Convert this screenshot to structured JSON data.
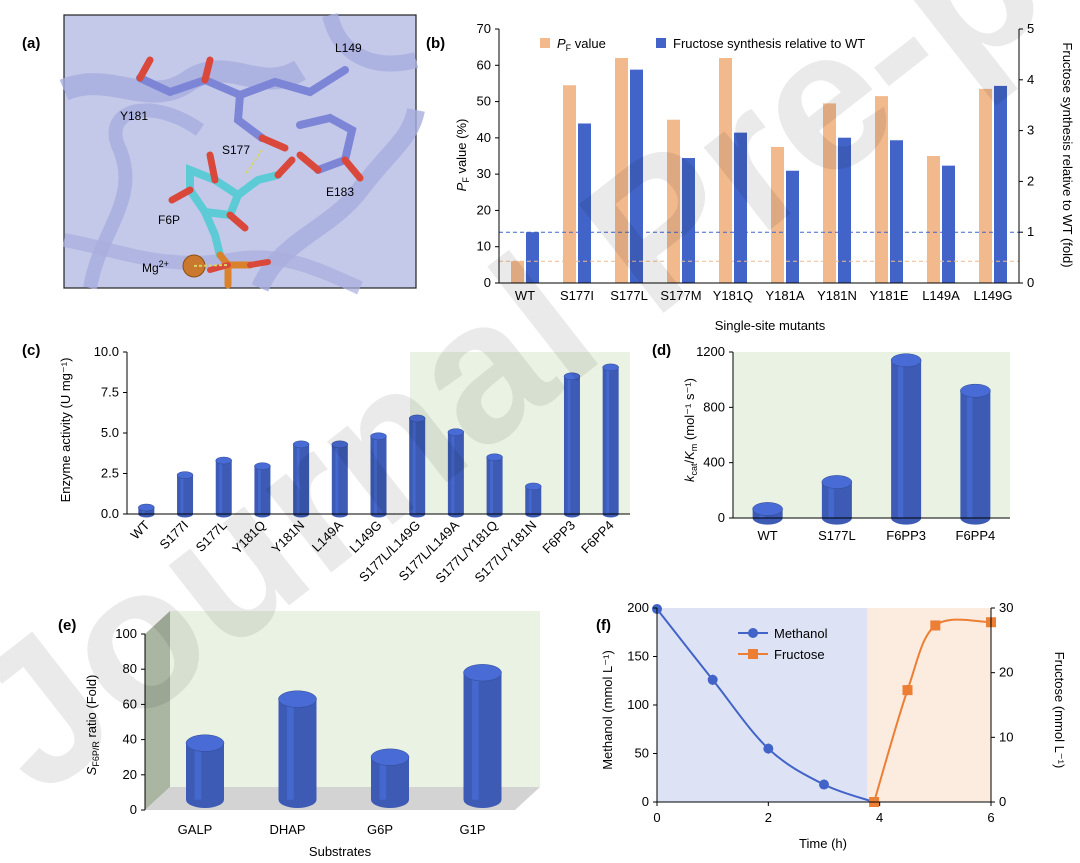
{
  "watermark": "Journal Pre-proof",
  "panels": {
    "a": {
      "label": "(a)",
      "residues": [
        "L149",
        "Y181",
        "S177",
        "E183",
        "F6P",
        "Mg2+"
      ],
      "colors": {
        "background": "#c4c9ea",
        "ribbon": "#9da4d9",
        "carbon_residue": "#7d86d6",
        "carbon_ligand": "#5ccbd6",
        "oxygen": "#d9483b",
        "phosphorus": "#d9822b",
        "magnesium": "#c9782d"
      }
    },
    "b": {
      "label": "(b)"
    },
    "c": {
      "label": "(c)"
    },
    "d": {
      "label": "(d)"
    },
    "e": {
      "label": "(e)"
    },
    "f": {
      "label": "(f)"
    }
  },
  "chart_data": [
    {
      "id": "b",
      "type": "bar",
      "xlabel": "Single-site mutants",
      "ylabel": "P_F value (%)",
      "ylabel_parts": {
        "main": "P",
        "sub": "F",
        "rest": " value (%)"
      },
      "y2label": "Fructose synthesis relative to WT (fold)",
      "ylim": [
        0,
        70
      ],
      "y2lim": [
        0,
        5
      ],
      "yticks": [
        0,
        10,
        20,
        30,
        40,
        50,
        60,
        70
      ],
      "y2ticks": [
        0,
        1,
        2,
        3,
        4,
        5
      ],
      "categories": [
        "WT",
        "S177I",
        "S177L",
        "S177M",
        "Y181Q",
        "Y181A",
        "Y181N",
        "Y181E",
        "L149A",
        "L149G"
      ],
      "series": [
        {
          "name": "P_F value",
          "name_parts": {
            "main": "P",
            "sub": "F",
            "rest": " value"
          },
          "axis": "left",
          "color": "#f2b98c",
          "values": [
            6,
            54.5,
            62,
            45,
            62,
            37.5,
            49.5,
            51.5,
            35,
            53.5
          ]
        },
        {
          "name": "Fructose synthesis relative to WT",
          "axis": "right",
          "color": "#4264c8",
          "values": [
            1.0,
            3.14,
            4.2,
            2.46,
            2.96,
            2.21,
            2.86,
            2.81,
            2.31,
            3.88
          ]
        }
      ],
      "reference_lines": [
        {
          "axis": "right",
          "value": 1.0,
          "color": "#4264c8",
          "style": "dashed"
        },
        {
          "axis": "left",
          "value": 6,
          "color": "#f2b98c",
          "style": "dashed"
        }
      ],
      "grid": false,
      "legend_position": "top-left"
    },
    {
      "id": "c",
      "type": "bar",
      "style": "3d-cylinder",
      "ylabel": "Enzyme activity (U mg⁻¹)",
      "ylim": [
        0,
        10
      ],
      "yticks": [
        "0.0",
        "2.5",
        "5.0",
        "7.5",
        "10.0"
      ],
      "categories": [
        "WT",
        "S177I",
        "S177L",
        "Y181Q",
        "Y181N",
        "L149A",
        "L149G",
        "S177L/L149G",
        "S177L/L149A",
        "S177L/Y181Q",
        "S177L/Y181N",
        "F6PP3",
        "F6PP4"
      ],
      "values": [
        0.4,
        2.4,
        3.3,
        2.95,
        4.3,
        4.3,
        4.8,
        5.9,
        5.05,
        3.5,
        1.7,
        8.5,
        9.05
      ],
      "color": "#3d5bb5",
      "background_color": "#eaf3e3",
      "grid": false
    },
    {
      "id": "d",
      "type": "bar",
      "style": "3d-cylinder",
      "ylabel": "k_cat/K_m (mol⁻¹ s⁻¹)",
      "ylabel_parts": {
        "k": "k",
        "ksub": "cat",
        "slash": "/",
        "K": "K",
        "Ksub": "m",
        "rest": " (mol⁻¹ s⁻¹)"
      },
      "ylim": [
        0,
        1200
      ],
      "yticks": [
        0,
        400,
        800,
        1200
      ],
      "categories": [
        "WT",
        "S177L",
        "F6PP3",
        "F6PP4"
      ],
      "values": [
        65,
        260,
        1140,
        920
      ],
      "color": "#3d5bb5",
      "background_color": "#eaf3e3",
      "grid": false
    },
    {
      "id": "e",
      "type": "bar",
      "style": "3d-cylinder",
      "xlabel": "Substrates",
      "ylabel": "S_F6P/R ratio (Fold)",
      "ylabel_parts": {
        "main": "S",
        "sub": "F6P/R",
        "rest": " ratio (Fold)"
      },
      "ylim": [
        0,
        100
      ],
      "yticks": [
        0,
        20,
        40,
        60,
        80,
        100
      ],
      "categories": [
        "GALP",
        "DHAP",
        "G6P",
        "G1P"
      ],
      "values": [
        38,
        63,
        30,
        78
      ],
      "color": "#3d5bb5",
      "background_color": "#eaf3e3",
      "grid": false
    },
    {
      "id": "f",
      "type": "line",
      "xlabel": "Time (h)",
      "ylabel": "Methanol (mmol L⁻¹)",
      "y2label": "Fructose (mmol L⁻¹)",
      "xlim": [
        0,
        6
      ],
      "ylim": [
        0,
        200
      ],
      "y2lim": [
        0,
        30
      ],
      "xticks": [
        0,
        2,
        4,
        6
      ],
      "yticks": [
        0,
        50,
        100,
        150,
        200
      ],
      "y2ticks": [
        0,
        10,
        20,
        30
      ],
      "series": [
        {
          "name": "Methanol",
          "axis": "left",
          "color": "#4264c8",
          "marker": "circle",
          "x": [
            0,
            1,
            2,
            3,
            3.9
          ],
          "y": [
            199,
            126,
            55,
            18,
            0
          ]
        },
        {
          "name": "Fructose",
          "axis": "right",
          "color": "#ec7f34",
          "marker": "square",
          "x": [
            3.9,
            4.5,
            5,
            6
          ],
          "y": [
            0,
            17.3,
            27.3,
            27.8
          ]
        }
      ],
      "shaded_regions": [
        {
          "x": [
            0,
            3.78
          ],
          "color": "#dde3f4"
        },
        {
          "x": [
            3.78,
            6
          ],
          "color": "#fcebdf"
        }
      ],
      "grid": false,
      "legend_position": "top-center"
    }
  ]
}
